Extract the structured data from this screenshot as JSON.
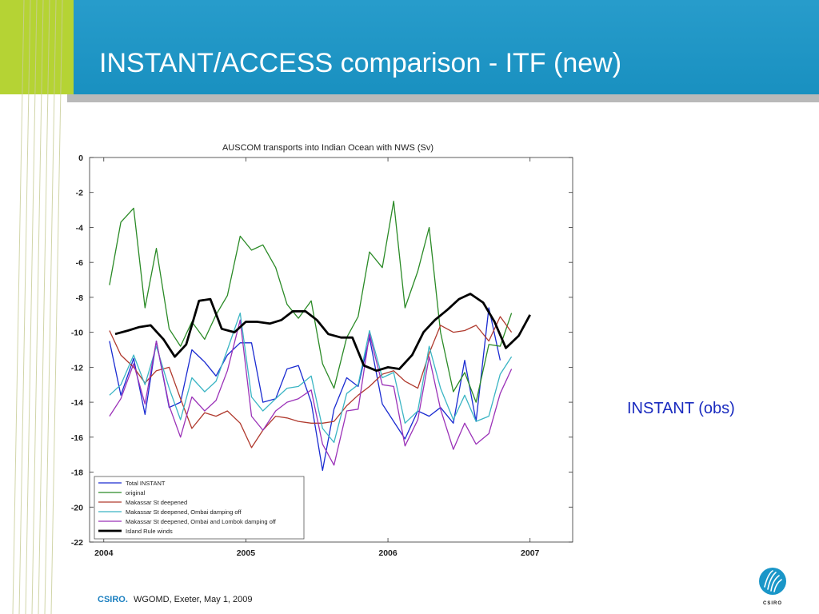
{
  "slide": {
    "title": "INSTANT/ACCESS comparison - ITF (new)",
    "annotation": "INSTANT (obs)",
    "footer_brand": "CSIRO.",
    "footer_text": "WGOMD, Exeter, May 1, 2009",
    "logo_text": "CSIRO"
  },
  "colors": {
    "header_blue": "#1a96c8",
    "accent_green": "#b5d334",
    "annotation_blue": "#1a2bbf"
  },
  "chart_data": {
    "type": "line",
    "title": "AUSCOM transports into Indian Ocean with NWS (Sv)",
    "xlabel": "",
    "ylabel": "",
    "xlim": [
      2003.9,
      2007.3
    ],
    "ylim": [
      -22,
      0
    ],
    "xticks": [
      2004,
      2005,
      2006,
      2007
    ],
    "yticks": [
      0,
      -2,
      -4,
      -6,
      -8,
      -10,
      -12,
      -14,
      -16,
      -18,
      -20,
      -22
    ],
    "grid": false,
    "legend_position": "bottom-left",
    "series": [
      {
        "name": "Total INSTANT",
        "color": "#1a2bd1",
        "width": 1.3,
        "x": [
          2004.04,
          2004.12,
          2004.21,
          2004.29,
          2004.37,
          2004.46,
          2004.54,
          2004.62,
          2004.71,
          2004.79,
          2004.87,
          2004.96,
          2005.04,
          2005.12,
          2005.21,
          2005.29,
          2005.37,
          2005.46,
          2005.54,
          2005.62,
          2005.71,
          2005.79,
          2005.87,
          2005.96,
          2006.04,
          2006.12,
          2006.21,
          2006.29,
          2006.37,
          2006.46,
          2006.54,
          2006.62,
          2006.71,
          2006.79
        ],
        "y": [
          -10.5,
          -13.6,
          -11.5,
          -14.7,
          -10.5,
          -14.3,
          -14.0,
          -11.0,
          -11.7,
          -12.5,
          -11.3,
          -10.6,
          -10.6,
          -14.0,
          -13.8,
          -12.1,
          -11.9,
          -14.0,
          -17.9,
          -14.4,
          -12.6,
          -13.1,
          -10.3,
          -14.1,
          -15.1,
          -16.1,
          -14.5,
          -14.8,
          -14.3,
          -15.2,
          -11.6,
          -15.1,
          -8.6,
          -11.6
        ]
      },
      {
        "name": "original",
        "color": "#2a8a26",
        "width": 1.3,
        "x": [
          2004.04,
          2004.12,
          2004.21,
          2004.29,
          2004.37,
          2004.46,
          2004.54,
          2004.62,
          2004.71,
          2004.79,
          2004.87,
          2004.96,
          2005.04,
          2005.12,
          2005.21,
          2005.29,
          2005.37,
          2005.46,
          2005.54,
          2005.62,
          2005.71,
          2005.79,
          2005.87,
          2005.96,
          2006.04,
          2006.12,
          2006.21,
          2006.29,
          2006.37,
          2006.46,
          2006.54,
          2006.62,
          2006.71,
          2006.79,
          2006.87
        ],
        "y": [
          -7.3,
          -3.7,
          -2.9,
          -8.6,
          -5.2,
          -9.8,
          -10.8,
          -9.4,
          -10.4,
          -9.0,
          -7.9,
          -4.5,
          -5.3,
          -5.0,
          -6.3,
          -8.4,
          -9.2,
          -8.2,
          -11.8,
          -13.2,
          -10.3,
          -9.1,
          -5.4,
          -6.3,
          -2.5,
          -8.6,
          -6.5,
          -4.0,
          -10.0,
          -13.4,
          -12.3,
          -14.0,
          -10.7,
          -10.8,
          -8.9
        ]
      },
      {
        "name": "Makassar St deepened",
        "color": "#b03a2e",
        "width": 1.3,
        "x": [
          2004.04,
          2004.12,
          2004.21,
          2004.29,
          2004.37,
          2004.46,
          2004.54,
          2004.62,
          2004.71,
          2004.79,
          2004.87,
          2004.96,
          2005.04,
          2005.12,
          2005.21,
          2005.29,
          2005.37,
          2005.46,
          2005.54,
          2005.62,
          2005.71,
          2005.79,
          2005.87,
          2005.96,
          2006.04,
          2006.12,
          2006.21,
          2006.29,
          2006.37,
          2006.46,
          2006.54,
          2006.62,
          2006.71,
          2006.79,
          2006.87
        ],
        "y": [
          -9.9,
          -11.3,
          -12.0,
          -12.9,
          -12.2,
          -12.0,
          -13.8,
          -15.5,
          -14.6,
          -14.8,
          -14.5,
          -15.2,
          -16.6,
          -15.6,
          -14.8,
          -14.9,
          -15.1,
          -15.2,
          -15.2,
          -15.1,
          -14.2,
          -13.6,
          -13.1,
          -12.4,
          -12.2,
          -12.8,
          -13.2,
          -11.2,
          -9.6,
          -10.0,
          -9.9,
          -9.6,
          -10.5,
          -9.1,
          -10.0
        ]
      },
      {
        "name": "Makassar St deepened, Ombai damping off",
        "color": "#3bb5c4",
        "width": 1.3,
        "x": [
          2004.04,
          2004.12,
          2004.21,
          2004.29,
          2004.37,
          2004.46,
          2004.54,
          2004.62,
          2004.71,
          2004.79,
          2004.87,
          2004.96,
          2005.04,
          2005.12,
          2005.21,
          2005.29,
          2005.37,
          2005.46,
          2005.54,
          2005.62,
          2005.71,
          2005.79,
          2005.87,
          2005.96,
          2006.04,
          2006.12,
          2006.21,
          2006.29,
          2006.37,
          2006.46,
          2006.54,
          2006.62,
          2006.71,
          2006.79,
          2006.87
        ],
        "y": [
          -13.6,
          -13.0,
          -11.3,
          -13.0,
          -10.8,
          -13.2,
          -15.0,
          -12.6,
          -13.4,
          -12.8,
          -11.0,
          -8.9,
          -13.7,
          -14.5,
          -13.8,
          -13.2,
          -13.1,
          -12.5,
          -15.5,
          -16.3,
          -13.5,
          -13.0,
          -9.9,
          -12.6,
          -12.3,
          -15.2,
          -14.5,
          -10.8,
          -13.2,
          -15.0,
          -13.6,
          -15.1,
          -14.8,
          -12.4,
          -11.4
        ]
      },
      {
        "name": "Makassar St deepened, Ombai and Lombok damping off",
        "color": "#9b32b8",
        "width": 1.3,
        "x": [
          2004.04,
          2004.12,
          2004.21,
          2004.29,
          2004.37,
          2004.46,
          2004.54,
          2004.62,
          2004.71,
          2004.79,
          2004.87,
          2004.96,
          2005.04,
          2005.12,
          2005.21,
          2005.29,
          2005.37,
          2005.46,
          2005.54,
          2005.62,
          2005.71,
          2005.79,
          2005.87,
          2005.96,
          2006.04,
          2006.12,
          2006.21,
          2006.29,
          2006.37,
          2006.46,
          2006.54,
          2006.62,
          2006.71,
          2006.79,
          2006.87
        ],
        "y": [
          -14.8,
          -13.8,
          -11.8,
          -14.1,
          -10.5,
          -14.2,
          -16.0,
          -13.7,
          -14.5,
          -13.9,
          -12.2,
          -9.3,
          -14.8,
          -15.6,
          -14.5,
          -14.0,
          -13.8,
          -13.3,
          -16.4,
          -17.6,
          -14.5,
          -14.4,
          -10.1,
          -13.0,
          -13.1,
          -16.5,
          -15.0,
          -11.4,
          -14.4,
          -16.7,
          -15.2,
          -16.4,
          -15.8,
          -13.5,
          -12.1
        ]
      },
      {
        "name": "Island Rule winds",
        "color": "#000000",
        "width": 2.8,
        "x": [
          2004.08,
          2004.17,
          2004.25,
          2004.33,
          2004.42,
          2004.5,
          2004.58,
          2004.67,
          2004.75,
          2004.83,
          2004.92,
          2005.0,
          2005.08,
          2005.17,
          2005.25,
          2005.33,
          2005.42,
          2005.5,
          2005.58,
          2005.67,
          2005.75,
          2005.83,
          2005.92,
          2006.0,
          2006.08,
          2006.17,
          2006.25,
          2006.33,
          2006.42,
          2006.5,
          2006.58,
          2006.67,
          2006.75,
          2006.83,
          2006.92,
          2007.0
        ],
        "y": [
          -10.1,
          -9.9,
          -9.7,
          -9.6,
          -10.4,
          -11.4,
          -10.7,
          -8.2,
          -8.1,
          -9.8,
          -10.0,
          -9.4,
          -9.4,
          -9.5,
          -9.3,
          -8.8,
          -8.8,
          -9.3,
          -10.1,
          -10.3,
          -10.3,
          -11.9,
          -12.2,
          -12.0,
          -12.1,
          -11.3,
          -10.0,
          -9.3,
          -8.7,
          -8.1,
          -7.8,
          -8.3,
          -9.4,
          -10.9,
          -10.2,
          -9.0
        ]
      }
    ]
  }
}
